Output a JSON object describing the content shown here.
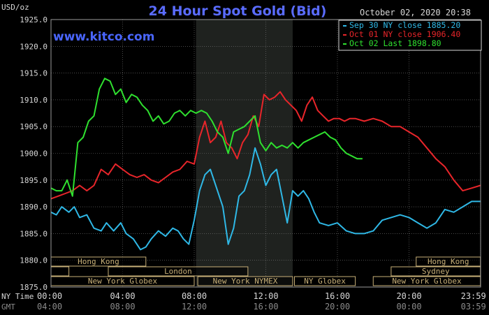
{
  "chart_data": {
    "type": "line",
    "title": "24 Hour Spot Gold (Bid)",
    "ylabel": "USD/oz",
    "brand": "www.kitco.com",
    "date_label": "October 02, 2020 20:38",
    "ylim": [
      1875,
      1925
    ],
    "y_ticks": [
      "1925.0",
      "1920.0",
      "1915.0",
      "1910.0",
      "1905.0",
      "1900.0",
      "1895.0",
      "1890.0",
      "1885.0",
      "1880.0",
      "1875.0"
    ],
    "x_ticks_ny": [
      "00:00",
      "04:00",
      "08:00",
      "12:00",
      "16:00",
      "20:00",
      "23:59"
    ],
    "x_ticks_gmt": [
      "04:00",
      "08:00",
      "12:00",
      "16:00",
      "20:00",
      "00:00",
      "03:59"
    ],
    "x_row_labels": [
      "NY Time",
      "GMT"
    ],
    "colors": {
      "sep30": "#2fb8e6",
      "oct01": "#e8252a",
      "oct02": "#2fe02f",
      "title": "#5a6cff",
      "brand": "#4a66ff",
      "axis_text": "#d8d8d8",
      "grid": "#7a7a7a",
      "sessionbox": "#c8b078",
      "shade": "#1f221f"
    },
    "legend": {
      "placement": "top-right",
      "entries": [
        {
          "text": "Sep 30 NY close 1885.20",
          "color": "#2fb8e6"
        },
        {
          "text": "Oct 01 NY close 1906.40",
          "color": "#e8252a"
        },
        {
          "text": "Oct 02 Last 1898.80",
          "color": "#2fe02f"
        }
      ]
    },
    "shaded_region": [
      8.1,
      13.5
    ],
    "sessions": [
      {
        "name": "Hong Kong",
        "row": 0,
        "start": 0,
        "end": 5.3
      },
      {
        "name": "Hong Kong",
        "row": 0,
        "start": 20.4,
        "end": 23.99
      },
      {
        "name": "",
        "row": 1,
        "start": 0,
        "end": 1.0
      },
      {
        "name": "London",
        "row": 1,
        "start": 3.2,
        "end": 11.0
      },
      {
        "name": "Sydney",
        "row": 1,
        "start": 19.0,
        "end": 23.99
      },
      {
        "name": "New York Globex",
        "row": 2,
        "start": 0,
        "end": 8.0
      },
      {
        "name": "New York NYMEX",
        "row": 2,
        "start": 8.2,
        "end": 13.5
      },
      {
        "name": "NY Globex",
        "row": 2,
        "start": 13.6,
        "end": 17.0
      },
      {
        "name": "New York Globex",
        "row": 2,
        "start": 18.0,
        "end": 23.99
      }
    ],
    "series": [
      {
        "name": "Sep 30",
        "color": "#2fb8e6",
        "x": [
          0,
          0.3,
          0.6,
          1.0,
          1.3,
          1.6,
          2.0,
          2.4,
          2.8,
          3.1,
          3.5,
          3.9,
          4.2,
          4.6,
          5.0,
          5.3,
          5.6,
          6.0,
          6.4,
          6.8,
          7.1,
          7.4,
          7.7,
          8.0,
          8.3,
          8.6,
          8.9,
          9.2,
          9.6,
          9.9,
          10.2,
          10.5,
          10.8,
          11.1,
          11.4,
          11.7,
          12.0,
          12.3,
          12.6,
          12.9,
          13.2,
          13.5,
          13.8,
          14.1,
          14.4,
          14.7,
          15.0,
          15.5,
          16.0,
          16.5,
          17.0,
          17.5,
          18.0,
          18.5,
          19.0,
          19.5,
          20.0,
          20.5,
          21.0,
          21.5,
          22.0,
          22.5,
          23.0,
          23.5,
          23.99
        ],
        "y": [
          1889,
          1888.5,
          1890,
          1889,
          1890,
          1888,
          1888.5,
          1886,
          1885.5,
          1887,
          1885.5,
          1887,
          1885,
          1884,
          1882,
          1882.5,
          1884,
          1885.5,
          1884.5,
          1886,
          1885.5,
          1884,
          1883,
          1887.5,
          1893,
          1896,
          1897,
          1894,
          1890,
          1883,
          1886,
          1892,
          1893,
          1896,
          1901,
          1898,
          1894,
          1896,
          1897,
          1892,
          1887,
          1893,
          1892,
          1893,
          1891.5,
          1889,
          1887,
          1886.5,
          1887,
          1885.5,
          1885,
          1885,
          1885.5,
          1887.5,
          1888,
          1888.5,
          1888,
          1887,
          1886,
          1887,
          1889.5,
          1889,
          1890,
          1891,
          1891
        ]
      },
      {
        "name": "Oct 01",
        "color": "#e8252a",
        "x": [
          0,
          0.4,
          0.8,
          1.2,
          1.6,
          2.0,
          2.4,
          2.8,
          3.2,
          3.6,
          4.0,
          4.4,
          4.8,
          5.2,
          5.6,
          6.0,
          6.4,
          6.8,
          7.2,
          7.6,
          8.0,
          8.3,
          8.6,
          8.9,
          9.2,
          9.5,
          9.8,
          10.1,
          10.4,
          10.7,
          11.0,
          11.3,
          11.6,
          11.9,
          12.2,
          12.5,
          12.8,
          13.1,
          13.4,
          13.7,
          14.0,
          14.3,
          14.6,
          14.9,
          15.2,
          15.5,
          15.8,
          16.1,
          16.4,
          16.7,
          17.0,
          17.5,
          18.0,
          18.5,
          19.0,
          19.5,
          20.0,
          20.5,
          21.0,
          21.5,
          22.0,
          22.5,
          23.0,
          23.5,
          23.99
        ],
        "y": [
          1891.5,
          1892,
          1892.5,
          1893,
          1894,
          1893,
          1894,
          1897,
          1896,
          1898,
          1897,
          1896,
          1895.5,
          1896,
          1895,
          1894.5,
          1895.5,
          1896.5,
          1897,
          1898.5,
          1898,
          1903,
          1906,
          1902,
          1903,
          1906,
          1902,
          1901,
          1899,
          1902,
          1903.5,
          1907,
          1905,
          1911,
          1910,
          1910.5,
          1911.5,
          1910,
          1909,
          1908,
          1906,
          1909,
          1910.5,
          1908,
          1907,
          1906,
          1906.5,
          1906.5,
          1906,
          1906.5,
          1906.5,
          1906,
          1906.5,
          1906,
          1905,
          1905,
          1904,
          1903,
          1901,
          1899,
          1897.5,
          1895,
          1893,
          1893.5,
          1894
        ]
      },
      {
        "name": "Oct 02",
        "color": "#2fe02f",
        "x": [
          0,
          0.3,
          0.6,
          0.9,
          1.2,
          1.5,
          1.8,
          2.1,
          2.4,
          2.7,
          3.0,
          3.3,
          3.6,
          3.9,
          4.2,
          4.5,
          4.8,
          5.1,
          5.4,
          5.7,
          6.0,
          6.3,
          6.6,
          6.9,
          7.2,
          7.5,
          7.8,
          8.1,
          8.4,
          8.7,
          9.0,
          9.3,
          9.6,
          9.9,
          10.2,
          10.5,
          10.8,
          11.1,
          11.4,
          11.7,
          12.0,
          12.3,
          12.6,
          12.9,
          13.2,
          13.5,
          13.8,
          14.1,
          14.4,
          14.7,
          15.0,
          15.3,
          15.6,
          15.9,
          16.2,
          16.5,
          16.8,
          17.1,
          17.4
        ],
        "y": [
          1893.5,
          1893,
          1893,
          1895,
          1892,
          1902,
          1903,
          1906,
          1907,
          1912,
          1914,
          1913.5,
          1911,
          1912,
          1909.5,
          1911,
          1910.5,
          1909,
          1908,
          1906,
          1907,
          1905.5,
          1906,
          1907.5,
          1908,
          1907,
          1908,
          1907.5,
          1908,
          1907.5,
          1906,
          1904,
          1903,
          1900,
          1904,
          1904.5,
          1905,
          1906,
          1907,
          1902,
          1900.5,
          1902,
          1901,
          1901.5,
          1901,
          1902,
          1901,
          1902,
          1902.5,
          1903,
          1903.5,
          1904,
          1903,
          1902.5,
          1901,
          1900,
          1899.5,
          1899,
          1899
        ]
      }
    ]
  }
}
